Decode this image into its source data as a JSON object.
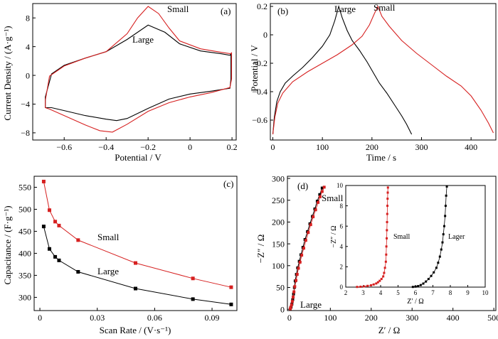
{
  "colors": {
    "large": "#000000",
    "small": "#d62020",
    "axis": "#000000"
  },
  "chart_data": [
    {
      "panel": "(a)",
      "type": "line",
      "xlabel": "Potential / V",
      "ylabel": "Current Density / (A·g⁻¹)",
      "xlim": [
        -0.75,
        0.22
      ],
      "ylim": [
        -9,
        10
      ],
      "xticks": [
        -0.6,
        -0.4,
        -0.2,
        0,
        0.2
      ],
      "xtick_labels": [
        "−0.6",
        "−0.4",
        "−0.2",
        "0",
        "0.2"
      ],
      "yticks": [
        -8,
        -4,
        0,
        4,
        8
      ],
      "ytick_labels": [
        "−8",
        "−4",
        "0",
        "4",
        "8"
      ],
      "series": [
        {
          "name": "Large",
          "color": "#000000",
          "closed": true,
          "x": [
            -0.69,
            -0.66,
            -0.6,
            -0.5,
            -0.4,
            -0.3,
            -0.2,
            -0.12,
            -0.05,
            0.05,
            0.15,
            0.19,
            0.195,
            0.195,
            0.19,
            0.1,
            0.0,
            -0.1,
            -0.2,
            -0.3,
            -0.35,
            -0.4,
            -0.5,
            -0.6,
            -0.66,
            -0.69
          ],
          "y": [
            -3.0,
            0.2,
            1.4,
            2.4,
            3.3,
            5.0,
            7.0,
            6.0,
            4.4,
            3.4,
            3.0,
            2.8,
            3.0,
            -0.5,
            -1.8,
            -2.2,
            -2.6,
            -3.3,
            -4.6,
            -6.0,
            -6.3,
            -6.1,
            -5.6,
            -4.9,
            -4.5,
            -4.5
          ]
        },
        {
          "name": "Small",
          "color": "#d62020",
          "closed": true,
          "x": [
            -0.69,
            -0.67,
            -0.6,
            -0.5,
            -0.4,
            -0.3,
            -0.25,
            -0.2,
            -0.15,
            -0.1,
            -0.05,
            0.05,
            0.15,
            0.195,
            0.198,
            0.198,
            0.19,
            0.1,
            0.0,
            -0.1,
            -0.2,
            -0.3,
            -0.37,
            -0.43,
            -0.5,
            -0.6,
            -0.67,
            -0.69
          ],
          "y": [
            -3.5,
            -0.1,
            1.3,
            2.4,
            3.3,
            5.8,
            8.0,
            9.6,
            8.6,
            6.6,
            4.8,
            3.7,
            3.2,
            3.0,
            3.2,
            -0.5,
            -1.7,
            -2.4,
            -3.0,
            -3.8,
            -5.0,
            -6.8,
            -7.9,
            -7.7,
            -6.9,
            -5.6,
            -4.7,
            -4.5
          ]
        }
      ],
      "annotations": [
        "Small",
        "Large"
      ]
    },
    {
      "panel": "(b)",
      "type": "line",
      "xlabel": "Time / s",
      "ylabel": "Potential / V",
      "xlim": [
        -5,
        450
      ],
      "ylim": [
        -0.74,
        0.22
      ],
      "xticks": [
        0,
        100,
        200,
        300,
        400
      ],
      "xtick_labels": [
        "0",
        "100",
        "200",
        "300",
        "400"
      ],
      "yticks": [
        -0.6,
        -0.4,
        -0.2,
        0,
        0.2
      ],
      "ytick_labels": [
        "−0.6",
        "−0.4",
        "−0.2",
        "0",
        "0.2"
      ],
      "series": [
        {
          "name": "Large",
          "color": "#000000",
          "x": [
            0,
            3,
            8,
            15,
            25,
            40,
            60,
            80,
            100,
            115,
            125,
            133,
            140,
            150,
            160,
            175,
            190,
            205,
            215,
            230,
            245,
            260,
            270,
            280
          ],
          "y": [
            -0.7,
            -0.58,
            -0.47,
            -0.4,
            -0.34,
            -0.29,
            -0.23,
            -0.16,
            -0.08,
            0.0,
            0.1,
            0.2,
            0.12,
            0.03,
            -0.04,
            -0.11,
            -0.19,
            -0.28,
            -0.34,
            -0.41,
            -0.49,
            -0.57,
            -0.63,
            -0.7
          ]
        },
        {
          "name": "Small",
          "color": "#d62020",
          "x": [
            0,
            4,
            10,
            20,
            40,
            70,
            100,
            130,
            160,
            180,
            195,
            205,
            212,
            220,
            235,
            260,
            290,
            320,
            350,
            380,
            400,
            420,
            435,
            445
          ],
          "y": [
            -0.7,
            -0.58,
            -0.48,
            -0.41,
            -0.33,
            -0.26,
            -0.2,
            -0.14,
            -0.07,
            -0.01,
            0.07,
            0.15,
            0.2,
            0.13,
            0.06,
            -0.04,
            -0.13,
            -0.21,
            -0.29,
            -0.36,
            -0.43,
            -0.53,
            -0.62,
            -0.69
          ]
        }
      ],
      "annotations": [
        "Large",
        "Small"
      ]
    },
    {
      "panel": "(c)",
      "type": "line",
      "xlabel": "Scan Rate / (V·s⁻¹)",
      "ylabel": "Capacitance / (F·g⁻¹)",
      "xlim": [
        -0.003,
        0.103
      ],
      "ylim": [
        270,
        575
      ],
      "xticks": [
        0,
        0.03,
        0.06,
        0.09
      ],
      "xtick_labels": [
        "0",
        "0.03",
        "0.06",
        "0.09"
      ],
      "yticks": [
        300,
        350,
        400,
        450,
        500,
        550
      ],
      "ytick_labels": [
        "300",
        "350",
        "400",
        "450",
        "500",
        "550"
      ],
      "series": [
        {
          "name": "Large",
          "color": "#000000",
          "x": [
            0.002,
            0.005,
            0.008,
            0.01,
            0.02,
            0.05,
            0.08,
            0.1
          ],
          "y": [
            461,
            410,
            392,
            384,
            358,
            320,
            296,
            284
          ]
        },
        {
          "name": "Small",
          "color": "#d62020",
          "x": [
            0.002,
            0.005,
            0.008,
            0.01,
            0.02,
            0.05,
            0.08,
            0.1
          ],
          "y": [
            563,
            498,
            472,
            463,
            430,
            378,
            343,
            323
          ]
        }
      ],
      "annotations": [
        "Small",
        "Large"
      ]
    },
    {
      "panel": "(d)",
      "type": "scatter",
      "xlabel": "Z′ / Ω",
      "ylabel": "−Z″ / Ω",
      "xlim": [
        -5,
        505
      ],
      "ylim": [
        -3,
        305
      ],
      "xticks": [
        0,
        100,
        200,
        300,
        400,
        500
      ],
      "xtick_labels": [
        "0",
        "100",
        "200",
        "300",
        "400",
        "500"
      ],
      "yticks": [
        0,
        50,
        100,
        150,
        200,
        250,
        300
      ],
      "ytick_labels": [
        "0",
        "50",
        "100",
        "150",
        "200",
        "250",
        "300"
      ],
      "series": [
        {
          "name": "Large",
          "color": "#000000",
          "x": [
            2,
            4,
            6,
            8,
            10,
            12,
            14,
            17,
            20,
            24,
            28,
            33,
            38,
            44,
            50,
            56,
            62,
            68,
            74,
            80
          ],
          "y": [
            1,
            5,
            12,
            22,
            35,
            50,
            65,
            80,
            95,
            110,
            125,
            142,
            160,
            178,
            196,
            213,
            230,
            248,
            263,
            278
          ]
        },
        {
          "name": "Small",
          "color": "#d62020",
          "x": [
            2,
            3,
            5,
            7,
            9,
            11,
            13,
            16,
            19,
            22,
            26,
            30,
            35,
            40,
            46,
            52,
            58,
            64,
            70,
            75,
            80,
            85
          ],
          "y": [
            1,
            4,
            10,
            18,
            28,
            40,
            52,
            66,
            80,
            94,
            108,
            124,
            140,
            158,
            176,
            194,
            212,
            228,
            245,
            258,
            270,
            280
          ]
        }
      ],
      "annotations": [
        "Small",
        "Large"
      ],
      "inset": {
        "xlabel": "Z′ / Ω",
        "ylabel": "−Z″ / Ω",
        "xlim": [
          2,
          10
        ],
        "ylim": [
          0,
          10
        ],
        "xticks": [
          2,
          3,
          4,
          5,
          6,
          7,
          8,
          9,
          10
        ],
        "xtick_labels": [
          "2",
          "3",
          "4",
          "5",
          "6",
          "7",
          "8",
          "9",
          "10"
        ],
        "yticks": [
          0,
          2,
          4,
          6,
          8,
          10
        ],
        "ytick_labels": [
          "0",
          "2",
          "4",
          "6",
          "8",
          "10"
        ],
        "labels": [
          "Small",
          "Lager"
        ],
        "series": [
          {
            "name": "Small",
            "color": "#d62020",
            "x": [
              2.65,
              2.85,
              3.05,
              3.25,
              3.45,
              3.6,
              3.75,
              3.85,
              3.95,
              4.05,
              4.15,
              4.2,
              4.25,
              4.3,
              4.32,
              4.33,
              4.35,
              4.36,
              4.37,
              4.38,
              4.39,
              4.4,
              4.41,
              4.42
            ],
            "y": [
              0.02,
              0.04,
              0.07,
              0.12,
              0.18,
              0.26,
              0.36,
              0.48,
              0.62,
              0.8,
              1.05,
              1.4,
              1.9,
              2.5,
              3.2,
              4.0,
              4.8,
              5.6,
              6.4,
              7.2,
              8.0,
              8.7,
              9.3,
              9.8
            ]
          },
          {
            "name": "Lager",
            "color": "#000000",
            "x": [
              5.85,
              6.0,
              6.15,
              6.3,
              6.45,
              6.6,
              6.75,
              6.9,
              7.05,
              7.2,
              7.3,
              7.4,
              7.48,
              7.55,
              7.6,
              7.65,
              7.7,
              7.73,
              7.76,
              7.8
            ],
            "y": [
              0.02,
              0.05,
              0.1,
              0.2,
              0.35,
              0.55,
              0.8,
              1.1,
              1.45,
              1.9,
              2.4,
              3.0,
              3.7,
              4.4,
              5.2,
              6.0,
              7.0,
              8.0,
              9.0,
              9.9
            ]
          }
        ]
      }
    }
  ]
}
